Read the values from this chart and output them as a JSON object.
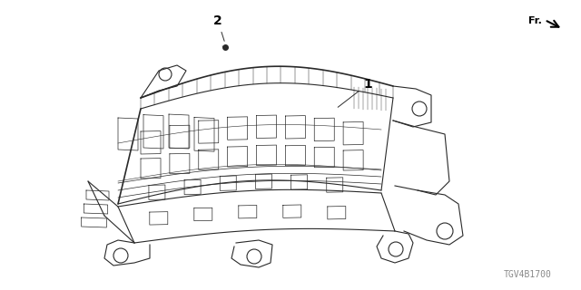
{
  "background_color": "#ffffff",
  "fig_width": 6.4,
  "fig_height": 3.2,
  "dpi": 100,
  "part_label_1": "1",
  "part_label_2": "2",
  "fr_label": "Fr.",
  "part_code": "TGV4B1700",
  "line_color": "#2a2a2a",
  "text_color": "#000000",
  "gray_color": "#888888"
}
